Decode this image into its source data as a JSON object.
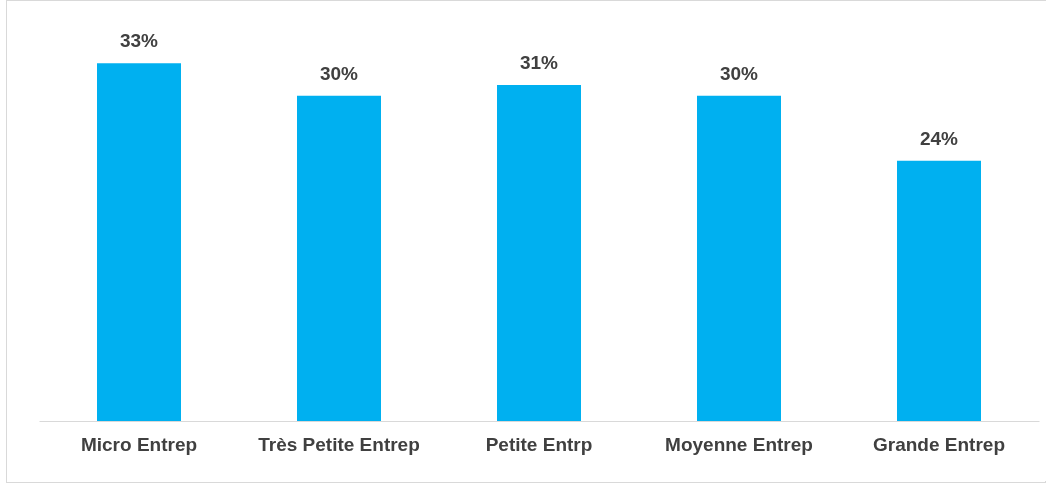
{
  "chart_data": {
    "type": "bar",
    "categories": [
      "Micro Entrep",
      "Très Petite Entrep",
      "Petite Entrp",
      "Moyenne Entrep",
      "Grande Entrep"
    ],
    "values": [
      33,
      30,
      31,
      30,
      24
    ],
    "value_labels": [
      "33%",
      "30%",
      "31%",
      "30%",
      "24%"
    ],
    "color": "#00b0f0",
    "grid": false
  }
}
